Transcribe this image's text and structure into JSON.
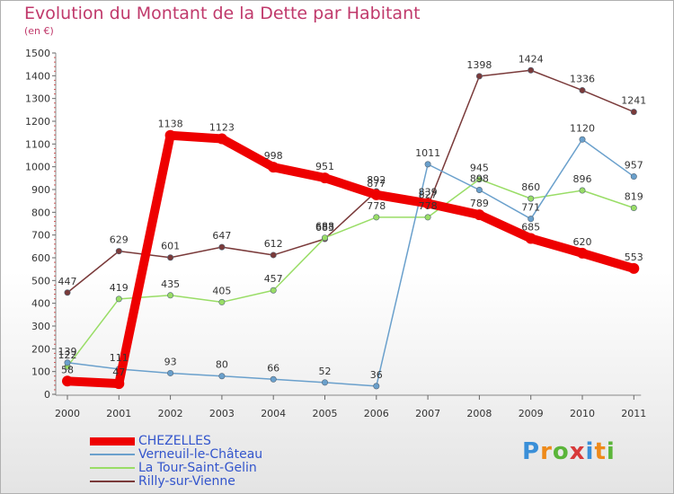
{
  "title": "Evolution du Montant de la Dette par Habitant",
  "subtitle": "(en €)",
  "logo": "Proxiti",
  "chart_data": {
    "type": "line",
    "x": [
      "2000",
      "2001",
      "2002",
      "2003",
      "2004",
      "2005",
      "2006",
      "2007",
      "2008",
      "2009",
      "2010",
      "2011"
    ],
    "ylim": [
      0,
      1500
    ],
    "yticks": [
      0,
      100,
      200,
      300,
      400,
      500,
      600,
      700,
      800,
      900,
      1000,
      1100,
      1200,
      1300,
      1400,
      1500
    ],
    "grid": false,
    "legend_position": "bottom-left",
    "series": [
      {
        "name": "CHEZELLES",
        "color": "#ee0000",
        "values": [
          58,
          47,
          1138,
          1123,
          998,
          951,
          877,
          839,
          789,
          685,
          620,
          553
        ],
        "labels": [
          "58",
          "47",
          "1138",
          "1123",
          "998",
          "951",
          "877",
          "839",
          "789",
          "685",
          "620",
          "553"
        ]
      },
      {
        "name": "Verneuil-le-Château",
        "color": "#6aa0cc",
        "values": [
          139,
          111,
          93,
          80,
          66,
          52,
          36,
          1011,
          898,
          771,
          1120,
          957
        ],
        "labels": [
          "139",
          "111",
          "93",
          "80",
          "66",
          "52",
          "36",
          "1011",
          "898",
          "771",
          "1120",
          "957"
        ]
      },
      {
        "name": "La Tour-Saint-Gelin",
        "color": "#99dd66",
        "values": [
          122,
          419,
          435,
          405,
          457,
          688,
          778,
          778,
          945,
          860,
          896,
          819
        ],
        "labels": [
          "122",
          "419",
          "435",
          "405",
          "457",
          "688",
          "778",
          "778",
          "945",
          "860",
          "896",
          "819"
        ]
      },
      {
        "name": "Rilly-sur-Vienne",
        "color": "#7a3a3a",
        "values": [
          447,
          629,
          601,
          647,
          612,
          683,
          892,
          827,
          1398,
          1424,
          1336,
          1241
        ],
        "labels": [
          "447",
          "629",
          "601",
          "647",
          "612",
          "683",
          "892",
          "827",
          "1398",
          "1424",
          "1336",
          "1241"
        ]
      }
    ]
  }
}
